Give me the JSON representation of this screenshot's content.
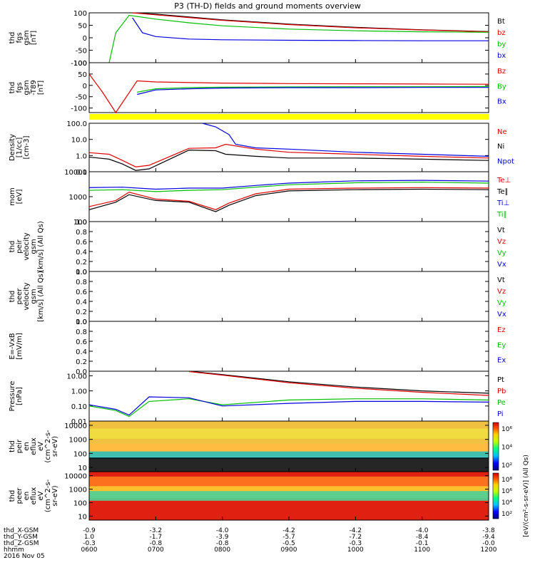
{
  "title": "P3 (TH-D) fields and ground moments overview",
  "date": "2016 Nov 05",
  "hours": [
    "0600",
    "0700",
    "0800",
    "0900",
    "1000",
    "1100",
    "1200"
  ],
  "ephemeris": [
    {
      "label": "thd_X-GSM",
      "values": [
        "-0.9",
        "-3.2",
        "-4.0",
        "-4.2",
        "-4.2",
        "-4.0",
        "-3.8"
      ]
    },
    {
      "label": "thd_Y-GSM",
      "values": [
        "1.0",
        "-1.7",
        "-3.9",
        "-5.7",
        "-7.2",
        "-8.4",
        "-9.4"
      ]
    },
    {
      "label": "thd_Z-GSM",
      "values": [
        "-0.3",
        "-0.8",
        "-0.8",
        "-0.5",
        "-0.3",
        "-0.1",
        "-0.0"
      ]
    },
    {
      "label": "hhmm",
      "values": []
    }
  ],
  "colors": {
    "black": "#000000",
    "red": "#e00000",
    "green": "#00c000",
    "blue": "#0000e0",
    "yellow": "#ffff00"
  },
  "chart_data": [
    {
      "id": "fgs",
      "type": "line",
      "ylabel": [
        "thd",
        "fgs",
        "gsm",
        "[nT]"
      ],
      "ylim": [
        -100,
        100
      ],
      "yticks": [
        "100",
        "50",
        "0",
        "-50",
        "-100"
      ],
      "legend": [
        {
          "name": "Bt",
          "color": "black"
        },
        {
          "name": "bz",
          "color": "red"
        },
        {
          "name": "by",
          "color": "green"
        },
        {
          "name": "bx",
          "color": "blue"
        }
      ],
      "series": [
        {
          "name": "Bt",
          "color": "black",
          "x": [
            0.65,
            1.0,
            2.0,
            3.0,
            4.0,
            5.0,
            6.0
          ],
          "y": [
            100,
            95,
            72,
            55,
            42,
            32,
            25
          ]
        },
        {
          "name": "bz",
          "color": "red",
          "x": [
            0.65,
            1.0,
            2.0,
            3.0,
            4.0,
            5.0,
            6.0
          ],
          "y": [
            100,
            92,
            70,
            53,
            40,
            31,
            24
          ]
        },
        {
          "name": "by",
          "color": "green",
          "x": [
            0.3,
            0.4,
            0.6,
            1.0,
            1.5,
            2.0,
            3.0,
            4.0,
            5.0,
            6.0
          ],
          "y": [
            -100,
            20,
            90,
            75,
            60,
            48,
            35,
            28,
            24,
            22
          ]
        },
        {
          "name": "bx",
          "color": "blue",
          "x": [
            0.65,
            0.8,
            1.0,
            1.5,
            2.0,
            3.0,
            4.0,
            5.0,
            6.0
          ],
          "y": [
            80,
            20,
            5,
            -5,
            -8,
            -10,
            -11,
            -12,
            -12
          ]
        }
      ]
    },
    {
      "id": "fgs-dif",
      "type": "line",
      "ylabel": [
        "thd",
        "fgs",
        "gsm",
        "-T89",
        "[nT]"
      ],
      "ylim": [
        -120,
        100
      ],
      "yticks": [
        "100",
        "50",
        "0",
        "-50",
        "-100"
      ],
      "legend": [
        {
          "name": "Bz",
          "color": "red"
        },
        {
          "name": "By",
          "color": "green"
        },
        {
          "name": "Bx",
          "color": "blue"
        }
      ],
      "series": [
        {
          "name": "Bz",
          "color": "red",
          "x": [
            0.0,
            0.2,
            0.4,
            0.72,
            1.0,
            2.0,
            3.0,
            4.0,
            5.0,
            6.0
          ],
          "y": [
            50,
            -30,
            -120,
            20,
            15,
            10,
            8,
            7,
            6,
            5
          ]
        },
        {
          "name": "By",
          "color": "green",
          "x": [
            0.72,
            1.0,
            1.5,
            2.0,
            3.0,
            4.0,
            5.0,
            6.0
          ],
          "y": [
            -30,
            -15,
            -10,
            -8,
            -7,
            -6,
            -6,
            -5
          ]
        },
        {
          "name": "Bx",
          "color": "blue",
          "x": [
            0.72,
            1.0,
            1.5,
            2.0,
            3.0,
            4.0,
            5.0,
            6.0
          ],
          "y": [
            -40,
            -20,
            -15,
            -12,
            -10,
            -10,
            -9,
            -9
          ]
        }
      ]
    },
    {
      "id": "density",
      "type": "line",
      "log": true,
      "ylabel": [
        "Density",
        "[1/cc]",
        "[cm-3]"
      ],
      "ylim": [
        0.1,
        100
      ],
      "yticks": [
        "100.0",
        "10.0",
        "1.0",
        "0.1"
      ],
      "legend": [
        {
          "name": "Ne",
          "color": "red"
        },
        {
          "name": "Ni",
          "color": "black"
        },
        {
          "name": "Npot",
          "color": "blue"
        }
      ],
      "series": [
        {
          "name": "Ne",
          "color": "red",
          "x": [
            0.0,
            0.3,
            0.5,
            0.7,
            0.9,
            1.5,
            1.9,
            2.05,
            2.5,
            3.0,
            4.0,
            5.0,
            6.0
          ],
          "y": [
            1.5,
            1.2,
            0.5,
            0.2,
            0.25,
            2.8,
            3.0,
            5.0,
            2.5,
            1.6,
            1.2,
            0.9,
            0.7
          ]
        },
        {
          "name": "Ni",
          "color": "black",
          "x": [
            0.0,
            0.3,
            0.5,
            0.7,
            0.9,
            1.5,
            1.9,
            2.05,
            2.5,
            3.0,
            4.0,
            5.0,
            6.0
          ],
          "y": [
            0.8,
            0.6,
            0.3,
            0.12,
            0.15,
            2.2,
            2.0,
            1.2,
            0.9,
            0.7,
            0.7,
            0.6,
            0.5
          ]
        },
        {
          "name": "Npot",
          "color": "blue",
          "x": [
            1.7,
            1.9,
            2.1,
            2.2,
            2.5,
            3.0,
            4.0,
            5.0,
            6.0
          ],
          "y": [
            100,
            60,
            20,
            5,
            3,
            2.5,
            1.6,
            1.2,
            0.9
          ]
        }
      ]
    },
    {
      "id": "temp",
      "type": "line",
      "log": true,
      "ylabel": [
        "mom",
        "[eV]"
      ],
      "ylim": [
        100,
        10000
      ],
      "yticks": [
        "10000",
        "1000",
        "100"
      ],
      "legend": [
        {
          "name": "Te⊥",
          "color": "red"
        },
        {
          "name": "Te∥",
          "color": "black"
        },
        {
          "name": "Ti⊥",
          "color": "blue"
        },
        {
          "name": "Ti∥",
          "color": "green"
        }
      ],
      "series": [
        {
          "name": "Te⊥",
          "color": "red",
          "x": [
            0.0,
            0.4,
            0.6,
            1.0,
            1.5,
            1.9,
            2.1,
            2.5,
            3.0,
            4.0,
            5.0,
            6.0
          ],
          "y": [
            400,
            700,
            1500,
            800,
            650,
            300,
            550,
            1300,
            2000,
            2200,
            2300,
            2200
          ]
        },
        {
          "name": "Te∥",
          "color": "black",
          "x": [
            0.0,
            0.4,
            0.6,
            1.0,
            1.5,
            1.9,
            2.1,
            2.5,
            3.0,
            4.0,
            5.0,
            6.0
          ],
          "y": [
            300,
            600,
            1200,
            700,
            600,
            250,
            450,
            1100,
            1700,
            1900,
            2000,
            1900
          ]
        },
        {
          "name": "Ti⊥",
          "color": "blue",
          "x": [
            0.0,
            0.5,
            1.0,
            1.5,
            2.0,
            2.5,
            3.0,
            4.0,
            5.0,
            6.0
          ],
          "y": [
            2300,
            2400,
            2000,
            2200,
            2200,
            2800,
            3500,
            4300,
            4500,
            4200
          ]
        },
        {
          "name": "Ti∥",
          "color": "green",
          "x": [
            0.0,
            0.5,
            1.0,
            1.5,
            2.0,
            2.5,
            3.0,
            4.0,
            5.0,
            6.0
          ],
          "y": [
            1800,
            1900,
            1600,
            1800,
            1900,
            2400,
            3000,
            3600,
            3800,
            3500
          ]
        }
      ]
    },
    {
      "id": "peir-vel",
      "type": "line",
      "ylabel": [
        "thd",
        "peir",
        "velocity",
        "gsm",
        "[km/s] (All Qs)"
      ],
      "ylim": [
        0,
        1
      ],
      "yticks": [
        "1.0",
        "0.8",
        "0.6",
        "0.4",
        "0.2",
        "0.0"
      ],
      "legend": [
        {
          "name": "Vt",
          "color": "black"
        },
        {
          "name": "Vz",
          "color": "red"
        },
        {
          "name": "Vy",
          "color": "green"
        },
        {
          "name": "Vx",
          "color": "blue"
        }
      ],
      "series": []
    },
    {
      "id": "peer-vel",
      "type": "line",
      "ylabel": [
        "thd",
        "peer",
        "velocity",
        "gsm",
        "[km/s] (All Qs)"
      ],
      "ylim": [
        0,
        1
      ],
      "yticks": [
        "1.0",
        "0.8",
        "0.6",
        "0.4",
        "0.2",
        "0.0"
      ],
      "legend": [
        {
          "name": "Vt",
          "color": "black"
        },
        {
          "name": "Vz",
          "color": "red"
        },
        {
          "name": "Vy",
          "color": "green"
        },
        {
          "name": "Vx",
          "color": "blue"
        }
      ],
      "series": []
    },
    {
      "id": "efield",
      "type": "line",
      "ylabel": [
        "E=-VxB",
        "[mV/m]"
      ],
      "ylim": [
        0,
        1
      ],
      "yticks": [
        "1.0",
        "0.8",
        "0.6",
        "0.4",
        "0.2",
        "0.0"
      ],
      "legend": [
        {
          "name": "Ez",
          "color": "red"
        },
        {
          "name": "Ey",
          "color": "green"
        },
        {
          "name": "Ex",
          "color": "blue"
        }
      ],
      "series": []
    },
    {
      "id": "pressure",
      "type": "line",
      "log": true,
      "ylabel": [
        "Pressure",
        "[nPa]"
      ],
      "ylim": [
        0.01,
        20
      ],
      "yticks": [
        "10.00",
        "1.00",
        "0.10",
        "0.01"
      ],
      "legend": [
        {
          "name": "Pt",
          "color": "black"
        },
        {
          "name": "Pb",
          "color": "red"
        },
        {
          "name": "Pe",
          "color": "green"
        },
        {
          "name": "Pi",
          "color": "blue"
        }
      ],
      "series": [
        {
          "name": "Pt",
          "color": "black",
          "x": [
            1.5,
            2.0,
            3.0,
            4.0,
            5.0,
            6.0
          ],
          "y": [
            20,
            12,
            4,
            1.8,
            1.0,
            0.7
          ]
        },
        {
          "name": "Pb",
          "color": "red",
          "x": [
            1.5,
            2.0,
            3.0,
            4.0,
            5.0,
            6.0
          ],
          "y": [
            19,
            11,
            3.5,
            1.5,
            0.8,
            0.5
          ]
        },
        {
          "name": "Pe",
          "color": "green",
          "x": [
            0.0,
            0.4,
            0.6,
            0.9,
            1.5,
            2.0,
            3.0,
            4.0,
            5.0,
            6.0
          ],
          "y": [
            0.1,
            0.05,
            0.02,
            0.2,
            0.3,
            0.12,
            0.25,
            0.3,
            0.3,
            0.25
          ]
        },
        {
          "name": "Pi",
          "color": "blue",
          "x": [
            0.0,
            0.4,
            0.6,
            0.9,
            1.5,
            2.0,
            3.0,
            4.0,
            5.0,
            6.0
          ],
          "y": [
            0.12,
            0.06,
            0.025,
            0.4,
            0.35,
            0.1,
            0.15,
            0.2,
            0.2,
            0.18
          ]
        }
      ]
    },
    {
      "id": "peir-spec",
      "type": "heatmap",
      "ylabel": [
        "thd",
        "peir",
        "en",
        "eflux",
        "eV",
        "(cm^2-s-",
        "sr-eV)"
      ],
      "ylim": [
        5,
        20000
      ],
      "yticks": [
        "10000",
        "1000",
        "100",
        "10"
      ],
      "colorbar": {
        "ticks": [
          "10⁶",
          "10⁴",
          "10²"
        ]
      }
    },
    {
      "id": "peer-spec",
      "type": "heatmap",
      "ylabel": [
        "thd",
        "peer",
        "en",
        "eflux",
        "eV",
        "(cm^2-s-",
        "sr-eV)"
      ],
      "ylim": [
        5,
        20000
      ],
      "yticks": [
        "10000",
        "1000",
        "100",
        "10"
      ],
      "colorbar": {
        "ticks": [
          "10⁸",
          "10⁶",
          "10⁴",
          "10²"
        ]
      }
    }
  ],
  "colorbar_label": "[eV/(cm²-s-sr-eV)] (All Qs)"
}
